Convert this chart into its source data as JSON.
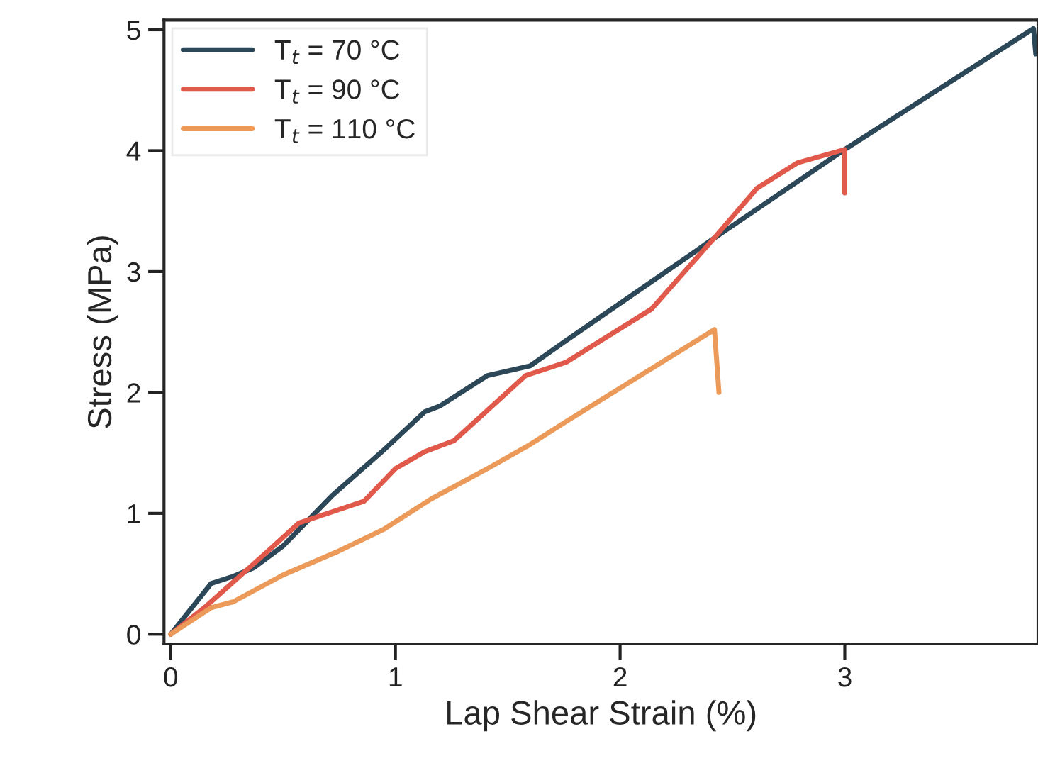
{
  "chart_data": {
    "type": "line",
    "xlabel": "Lap Shear Strain (%)",
    "ylabel": "Stress (MPa)",
    "xlim": [
      -0.03,
      3.86
    ],
    "ylim": [
      -0.08,
      5.08
    ],
    "xticks": [
      0,
      1,
      2,
      3
    ],
    "yticks": [
      0,
      1,
      2,
      3,
      4,
      5
    ],
    "grid": false,
    "legend": "top left",
    "marker": "none",
    "line_style": "solid",
    "series": [
      {
        "name": "T$_{t}$ = 70 °C",
        "color": "#2b4758",
        "x": [
          0,
          0.18,
          0.28,
          0.37,
          0.5,
          0.72,
          0.94,
          1.13,
          1.2,
          1.41,
          1.6,
          1.76,
          2.33,
          2.39,
          3.0,
          3.84,
          3.85
        ],
        "values": [
          0,
          0.42,
          0.48,
          0.55,
          0.73,
          1.15,
          1.51,
          1.84,
          1.89,
          2.14,
          2.22,
          2.43,
          3.16,
          3.24,
          4.01,
          5.01,
          4.8
        ]
      },
      {
        "name": "T$_{t}$ = 90 °C",
        "color": "#e0594a",
        "x": [
          0,
          0.15,
          0.44,
          0.57,
          0.86,
          1.0,
          1.13,
          1.26,
          1.58,
          1.76,
          2.14,
          2.42,
          2.61,
          2.79,
          3.0,
          3.0
        ],
        "values": [
          0,
          0.22,
          0.7,
          0.92,
          1.1,
          1.37,
          1.51,
          1.6,
          2.14,
          2.25,
          2.69,
          3.28,
          3.69,
          3.9,
          4.01,
          3.65
        ]
      },
      {
        "name": "T$_{t}$ = 110 °C",
        "color": "#ec9a5a",
        "x": [
          0,
          0.18,
          0.28,
          0.5,
          0.75,
          0.95,
          1.16,
          1.41,
          1.6,
          1.76,
          2.42,
          2.44
        ],
        "values": [
          0,
          0.22,
          0.27,
          0.49,
          0.69,
          0.87,
          1.12,
          1.37,
          1.57,
          1.76,
          2.52,
          2.0
        ]
      }
    ]
  }
}
